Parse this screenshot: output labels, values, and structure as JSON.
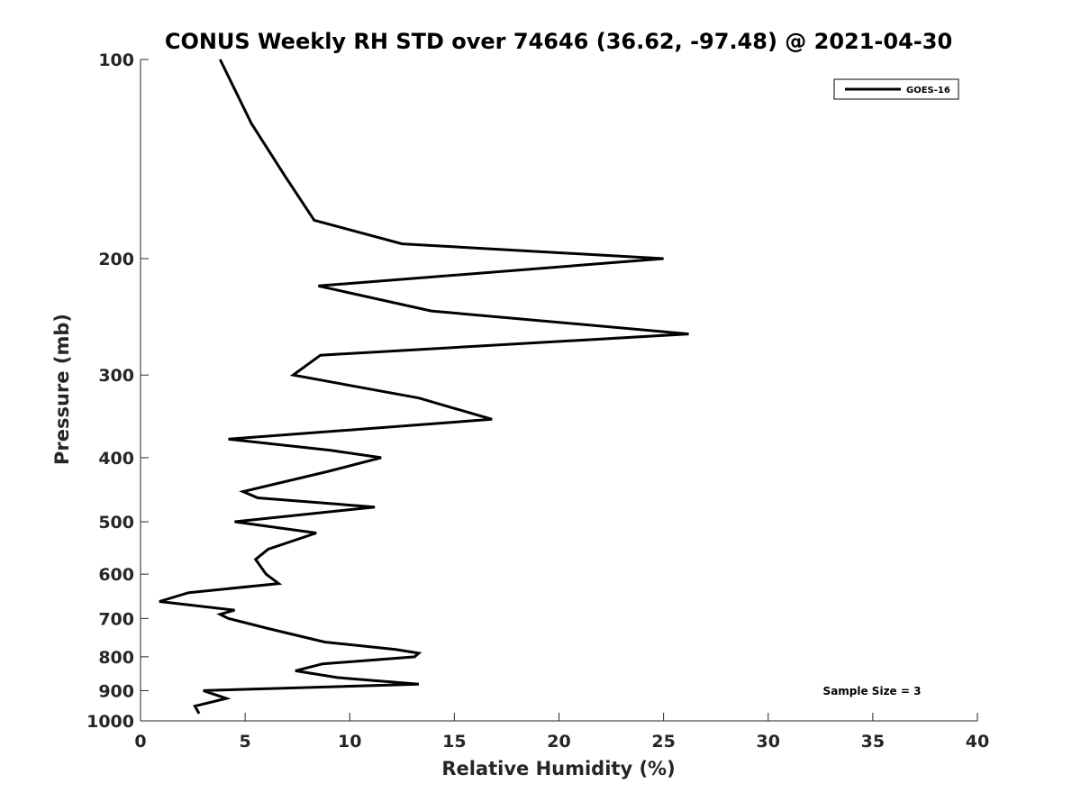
{
  "chart_data": {
    "type": "line",
    "title": "CONUS Weekly RH STD over 74646 (36.62, -97.48) @ 2021-04-30",
    "xlabel": "Relative Humidity (%)",
    "ylabel": "Pressure (mb)",
    "xlim": [
      0,
      40
    ],
    "ylim": [
      100,
      1000
    ],
    "yscale": "log",
    "y_reversed": true,
    "xticks": [
      0,
      5,
      10,
      15,
      20,
      25,
      30,
      35,
      40
    ],
    "yticks": [
      100,
      200,
      300,
      400,
      500,
      600,
      700,
      800,
      900,
      1000
    ],
    "grid": false,
    "legend_position": "top-right",
    "series": [
      {
        "name": "GOES-16",
        "color": "#000000",
        "points": [
          [
            3.8,
            100
          ],
          [
            5.3,
            125
          ],
          [
            6.9,
            150
          ],
          [
            8.3,
            175
          ],
          [
            12.5,
            190
          ],
          [
            25.0,
            200
          ],
          [
            8.5,
            220
          ],
          [
            13.9,
            240
          ],
          [
            26.2,
            260
          ],
          [
            8.6,
            280
          ],
          [
            7.3,
            300
          ],
          [
            13.3,
            325
          ],
          [
            16.8,
            350
          ],
          [
            4.2,
            375
          ],
          [
            9.1,
            390
          ],
          [
            11.5,
            400
          ],
          [
            8.9,
            420
          ],
          [
            4.9,
            450
          ],
          [
            5.6,
            460
          ],
          [
            11.2,
            475
          ],
          [
            4.5,
            500
          ],
          [
            8.4,
            520
          ],
          [
            6.1,
            550
          ],
          [
            5.5,
            570
          ],
          [
            6.0,
            600
          ],
          [
            6.6,
            620
          ],
          [
            2.3,
            640
          ],
          [
            0.9,
            660
          ],
          [
            4.5,
            680
          ],
          [
            3.8,
            690
          ],
          [
            4.2,
            700
          ],
          [
            6.1,
            725
          ],
          [
            8.8,
            760
          ],
          [
            12.2,
            780
          ],
          [
            13.3,
            790
          ],
          [
            13.1,
            800
          ],
          [
            8.7,
            820
          ],
          [
            7.4,
            840
          ],
          [
            9.4,
            860
          ],
          [
            13.3,
            880
          ],
          [
            3.0,
            900
          ],
          [
            4.1,
            925
          ],
          [
            2.6,
            950
          ],
          [
            2.8,
            975
          ]
        ]
      }
    ],
    "annotation": "Sample Size = 3"
  }
}
